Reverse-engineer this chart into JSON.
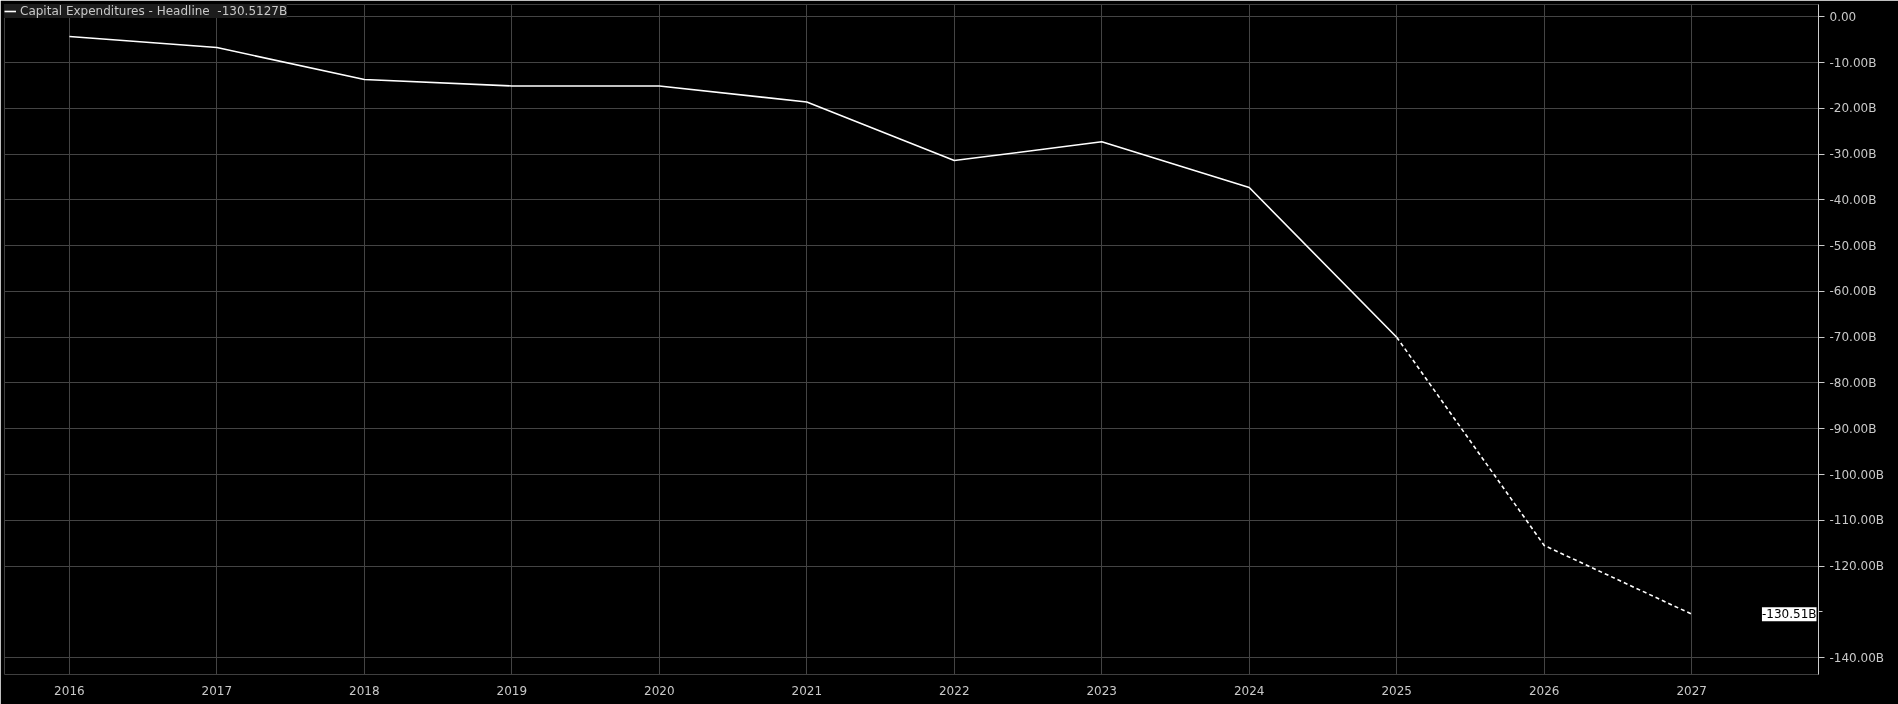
{
  "chart_data": {
    "type": "line",
    "x": [
      2016,
      2017,
      2018,
      2019,
      2020,
      2021,
      2022,
      2023,
      2024,
      2025,
      2026,
      2027
    ],
    "series": [
      {
        "name": "Capital Expenditures - Headline  -130.5127B",
        "color": "#ffffff",
        "line_style": "solid",
        "values": [
          -4.3,
          -6.7,
          -13.7,
          -15.1,
          -15.1,
          -18.6,
          -31.4,
          -27.3,
          -37.3,
          -70.0,
          null,
          null
        ]
      },
      {
        "color": "#ffffff",
        "line_style": "dashed",
        "values": [
          null,
          null,
          null,
          null,
          null,
          null,
          null,
          null,
          null,
          -70.0,
          -115.5,
          -130.51
        ]
      }
    ],
    "xlim": [
      2015.56,
      2027.86
    ],
    "xticks": [
      2016,
      2017,
      2018,
      2019,
      2020,
      2021,
      2022,
      2023,
      2024,
      2025,
      2026,
      2027
    ],
    "ylim": [
      -143.7,
      2.7
    ],
    "yticks": [
      {
        "value": 0,
        "label": "0.00"
      },
      {
        "value": -10,
        "label": "-10.00B"
      },
      {
        "value": -20,
        "label": "-20.00B"
      },
      {
        "value": -30,
        "label": "-30.00B"
      },
      {
        "value": -40,
        "label": "-40.00B"
      },
      {
        "value": -50,
        "label": "-50.00B"
      },
      {
        "value": -60,
        "label": "-60.00B"
      },
      {
        "value": -70,
        "label": "-70.00B"
      },
      {
        "value": -80,
        "label": "-80.00B"
      },
      {
        "value": -90,
        "label": "-90.00B"
      },
      {
        "value": -100,
        "label": "-100.00B"
      },
      {
        "value": -110,
        "label": "-110.00B"
      },
      {
        "value": -120,
        "label": "-120.00B"
      },
      {
        "value": -130,
        "label": null
      },
      {
        "value": -140,
        "label": "-140.00B"
      },
      {
        "value": 0.0,
        "label": null
      }
    ],
    "annotations": [
      "-130.51B"
    ],
    "grid": true,
    "legend": "top left",
    "marker": "none"
  }
}
